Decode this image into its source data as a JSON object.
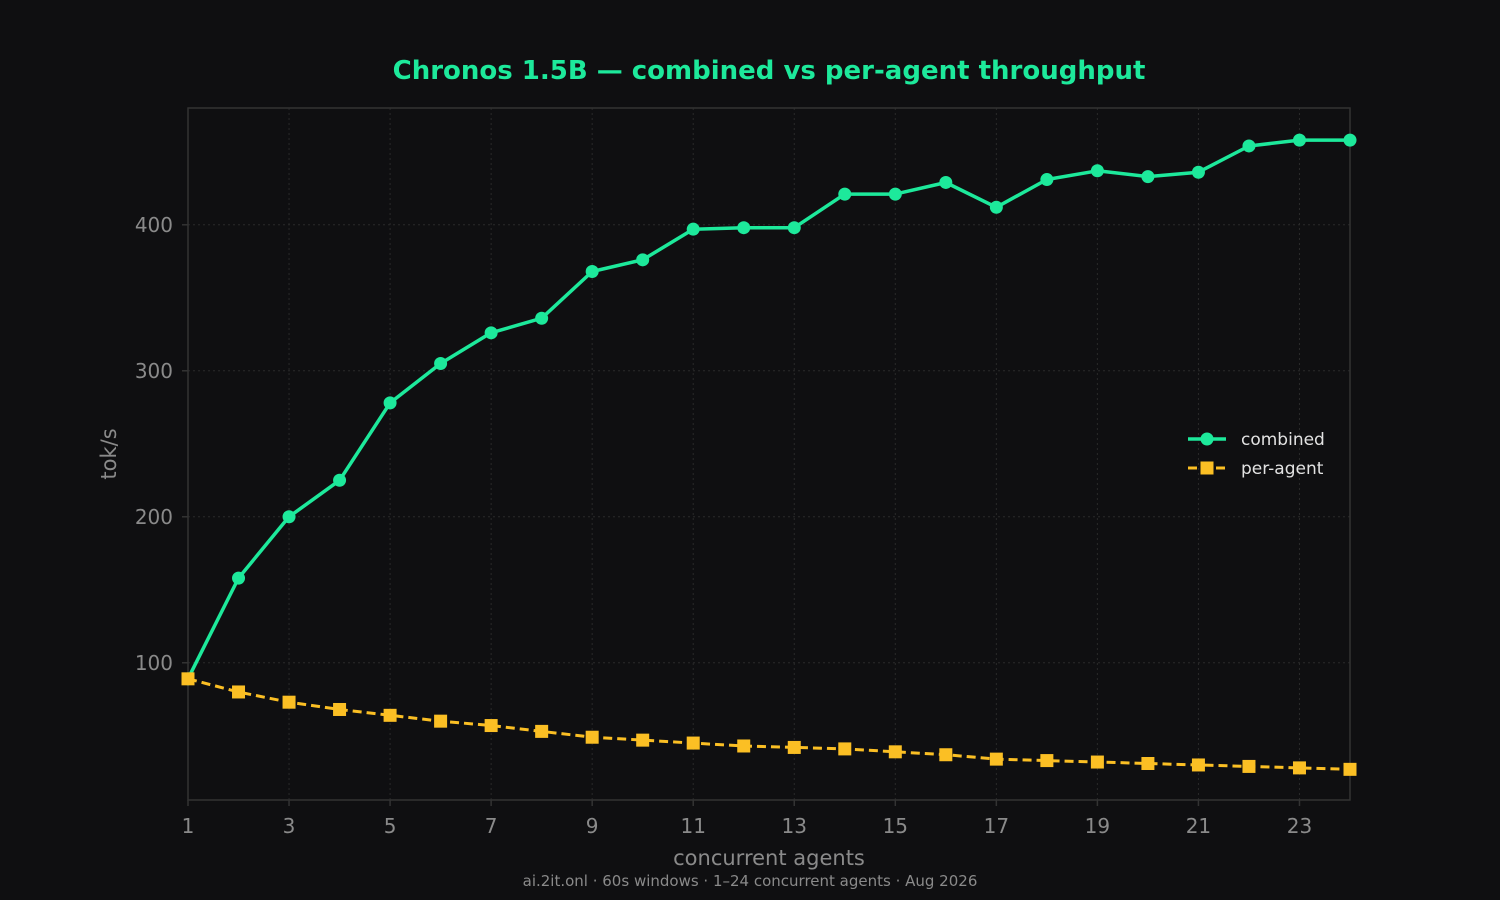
{
  "colors": {
    "background": "#0f0f11",
    "title": "#1de99b",
    "combined": "#1de99b",
    "per_agent": "#fbbf24",
    "grid": "#2a2a2a",
    "axis": "#333333",
    "text_muted": "#8a8a8a",
    "legend_text": "#e2e2e2"
  },
  "footer": "ai.2it.onl · 60s windows · 1–24 concurrent agents · Aug 2026",
  "chart_data": {
    "type": "line",
    "title": "Chronos 1.5B — combined vs per-agent throughput",
    "xlabel": "concurrent agents",
    "ylabel": "tok/s",
    "xlim": [
      1,
      24
    ],
    "ylim": [
      6,
      480
    ],
    "x_ticks": [
      1,
      3,
      5,
      7,
      9,
      11,
      13,
      15,
      17,
      19,
      21,
      23
    ],
    "y_ticks": [
      100,
      200,
      300,
      400
    ],
    "grid": true,
    "legend_position": "right",
    "x": [
      1,
      2,
      3,
      4,
      5,
      6,
      7,
      8,
      9,
      10,
      11,
      12,
      13,
      14,
      15,
      16,
      17,
      18,
      19,
      20,
      21,
      22,
      23,
      24
    ],
    "series": [
      {
        "name": "combined",
        "marker": "circle",
        "line_style": "solid",
        "color": "#1de99b",
        "values": [
          89,
          158,
          200,
          225,
          278,
          305,
          326,
          336,
          368,
          376,
          397,
          398,
          398,
          421,
          421,
          429,
          412,
          431,
          437,
          433,
          436,
          454,
          458,
          458
        ]
      },
      {
        "name": "per-agent",
        "marker": "square",
        "line_style": "dashed",
        "color": "#fbbf24",
        "values": [
          89,
          80,
          73,
          68,
          64,
          60,
          57,
          53,
          49,
          47,
          45,
          43,
          42,
          41,
          39,
          37,
          34,
          33,
          32,
          31,
          30,
          29,
          28,
          27
        ]
      }
    ]
  }
}
